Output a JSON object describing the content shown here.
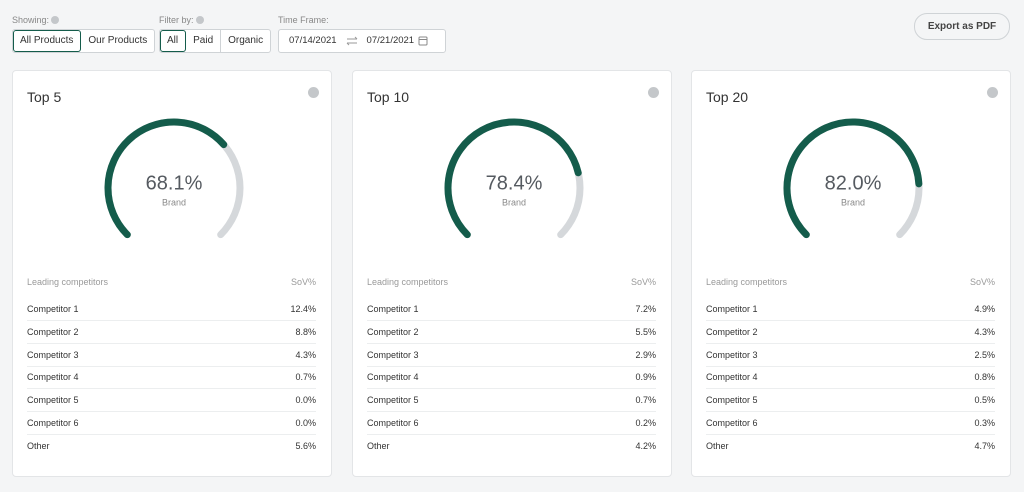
{
  "controls": {
    "showing": {
      "label": "Showing:",
      "options": [
        "All Products",
        "Our Products"
      ]
    },
    "filter": {
      "label": "Filter by:",
      "options": [
        "All",
        "Paid",
        "Organic"
      ]
    },
    "timeframe": {
      "label": "Time Frame:",
      "start": "07/14/2021",
      "end": "07/21/2021"
    },
    "export": "Export as PDF"
  },
  "cards": [
    {
      "title": "Top 5",
      "gauge": {
        "value": 68.1,
        "label": "68.1%",
        "caption": "Brand"
      },
      "table": {
        "headers": [
          "Leading competitors",
          "SoV%"
        ],
        "rows": [
          [
            "Competitor 1",
            "12.4%"
          ],
          [
            "Competitor 2",
            "8.8%"
          ],
          [
            "Competitor 3",
            "4.3%"
          ],
          [
            "Competitor 4",
            "0.7%"
          ],
          [
            "Competitor 5",
            "0.0%"
          ],
          [
            "Competitor 6",
            "0.0%"
          ],
          [
            "Other",
            "5.6%"
          ]
        ]
      }
    },
    {
      "title": "Top 10",
      "gauge": {
        "value": 78.4,
        "label": "78.4%",
        "caption": "Brand"
      },
      "table": {
        "headers": [
          "Leading competitors",
          "SoV%"
        ],
        "rows": [
          [
            "Competitor 1",
            "7.2%"
          ],
          [
            "Competitor 2",
            "5.5%"
          ],
          [
            "Competitor 3",
            "2.9%"
          ],
          [
            "Competitor 4",
            "0.9%"
          ],
          [
            "Competitor 5",
            "0.7%"
          ],
          [
            "Competitor 6",
            "0.2%"
          ],
          [
            "Other",
            "4.2%"
          ]
        ]
      }
    },
    {
      "title": "Top 20",
      "gauge": {
        "value": 82.0,
        "label": "82.0%",
        "caption": "Brand"
      },
      "table": {
        "headers": [
          "Leading competitors",
          "SoV%"
        ],
        "rows": [
          [
            "Competitor 1",
            "4.9%"
          ],
          [
            "Competitor 2",
            "4.3%"
          ],
          [
            "Competitor 3",
            "2.5%"
          ],
          [
            "Competitor 4",
            "0.8%"
          ],
          [
            "Competitor 5",
            "0.5%"
          ],
          [
            "Competitor 6",
            "0.3%"
          ],
          [
            "Other",
            "4.7%"
          ]
        ]
      }
    }
  ]
}
